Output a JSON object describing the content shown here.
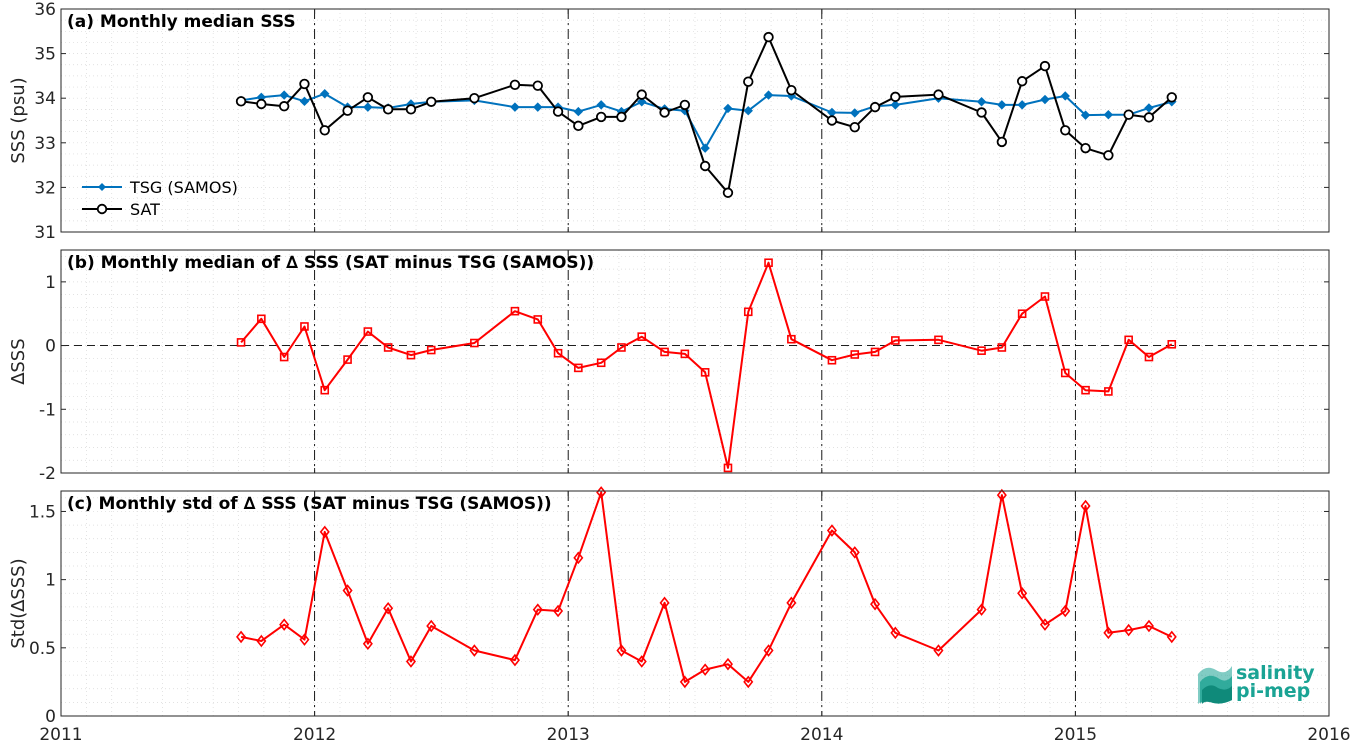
{
  "chart_data": [
    {
      "type": "line",
      "title": "(a) Monthly median SSS",
      "ylabel": "SSS (psu)",
      "xlim": [
        2011,
        2016
      ],
      "ylim": [
        31,
        36
      ],
      "x_ticks": [
        "2011",
        "2012",
        "2013",
        "2014",
        "2015",
        "2016"
      ],
      "y_ticks": [
        "31",
        "32",
        "33",
        "34",
        "35",
        "36"
      ],
      "grid": true,
      "legend": "bottom-left",
      "series": [
        {
          "name": "TSG (SAMOS)",
          "color": "#0072bd",
          "marker": "diamond-filled",
          "x": [
            2011.71,
            2011.79,
            2011.88,
            2011.96,
            2012.04,
            2012.13,
            2012.21,
            2012.29,
            2012.38,
            2012.46,
            2012.63,
            2012.79,
            2012.88,
            2012.96,
            2013.04,
            2013.13,
            2013.21,
            2013.29,
            2013.38,
            2013.46,
            2013.54,
            2013.63,
            2013.71,
            2013.79,
            2013.88,
            2014.04,
            2014.13,
            2014.21,
            2014.29,
            2014.46,
            2014.63,
            2014.71,
            2014.79,
            2014.88,
            2014.96,
            2015.04,
            2015.13,
            2015.21,
            2015.29,
            2015.38
          ],
          "values": [
            33.95,
            34.02,
            34.07,
            33.93,
            34.1,
            33.8,
            33.8,
            33.78,
            33.87,
            33.92,
            33.95,
            33.8,
            33.8,
            33.8,
            33.7,
            33.85,
            33.7,
            33.92,
            33.76,
            33.72,
            32.88,
            33.77,
            33.72,
            34.07,
            34.05,
            33.68,
            33.67,
            33.82,
            33.85,
            34.0,
            33.92,
            33.85,
            33.85,
            33.97,
            34.05,
            33.62,
            33.63,
            33.63,
            33.78,
            33.92
          ]
        },
        {
          "name": "SAT",
          "color": "#000000",
          "marker": "circle-open",
          "x": [
            2011.71,
            2011.79,
            2011.88,
            2011.96,
            2012.04,
            2012.13,
            2012.21,
            2012.29,
            2012.38,
            2012.46,
            2012.63,
            2012.79,
            2012.88,
            2012.96,
            2013.04,
            2013.13,
            2013.21,
            2013.29,
            2013.38,
            2013.46,
            2013.54,
            2013.63,
            2013.71,
            2013.79,
            2013.88,
            2014.04,
            2014.13,
            2014.21,
            2014.29,
            2014.46,
            2014.63,
            2014.71,
            2014.79,
            2014.88,
            2014.96,
            2015.04,
            2015.13,
            2015.21,
            2015.29,
            2015.38
          ],
          "values": [
            33.93,
            33.87,
            33.82,
            34.32,
            33.28,
            33.72,
            34.02,
            33.75,
            33.75,
            33.92,
            34.0,
            34.3,
            34.28,
            33.7,
            33.38,
            33.58,
            33.58,
            34.08,
            33.68,
            33.85,
            32.48,
            31.88,
            34.37,
            35.37,
            34.18,
            33.5,
            33.35,
            33.8,
            34.03,
            34.08,
            33.68,
            33.02,
            34.38,
            34.72,
            33.28,
            32.88,
            32.72,
            33.63,
            33.57,
            34.02
          ]
        }
      ]
    },
    {
      "type": "line",
      "title": "(b) Monthly median of ∆ SSS (SAT minus TSG (SAMOS))",
      "ylabel": "∆SSS",
      "xlim": [
        2011,
        2016
      ],
      "ylim": [
        -2,
        1.5
      ],
      "x_ticks": [
        "2011",
        "2012",
        "2013",
        "2014",
        "2015",
        "2016"
      ],
      "y_ticks": [
        "-2",
        "-1",
        "0",
        "1"
      ],
      "grid": true,
      "series": [
        {
          "color": "#ff0000",
          "marker": "square-open",
          "x": [
            2011.71,
            2011.79,
            2011.88,
            2011.96,
            2012.04,
            2012.13,
            2012.21,
            2012.29,
            2012.38,
            2012.46,
            2012.63,
            2012.79,
            2012.88,
            2012.96,
            2013.04,
            2013.13,
            2013.21,
            2013.29,
            2013.38,
            2013.46,
            2013.54,
            2013.63,
            2013.71,
            2013.79,
            2013.88,
            2014.04,
            2014.13,
            2014.21,
            2014.29,
            2014.46,
            2014.63,
            2014.71,
            2014.79,
            2014.88,
            2014.96,
            2015.04,
            2015.13,
            2015.21,
            2015.29,
            2015.38
          ],
          "values": [
            0.05,
            0.42,
            -0.18,
            0.3,
            -0.7,
            -0.22,
            0.22,
            -0.03,
            -0.15,
            -0.07,
            0.04,
            0.54,
            0.41,
            -0.12,
            -0.35,
            -0.27,
            -0.03,
            0.14,
            -0.1,
            -0.13,
            -0.42,
            -1.92,
            0.53,
            1.3,
            0.1,
            -0.23,
            -0.14,
            -0.1,
            0.08,
            0.09,
            -0.08,
            -0.03,
            0.5,
            0.77,
            -0.43,
            -0.7,
            -0.72,
            0.09,
            -0.18,
            0.02
          ]
        }
      ]
    },
    {
      "type": "line",
      "title": "(c) Monthly std of ∆ SSS (SAT minus TSG (SAMOS))",
      "ylabel": "Std(∆SSS)",
      "xlim": [
        2011,
        2016
      ],
      "ylim": [
        0,
        1.65
      ],
      "x_ticks": [
        "2011",
        "2012",
        "2013",
        "2014",
        "2015",
        "2016"
      ],
      "y_ticks": [
        "0",
        "0.5",
        "1",
        "1.5"
      ],
      "grid": true,
      "series": [
        {
          "color": "#ff0000",
          "marker": "diamond-open",
          "x": [
            2011.71,
            2011.79,
            2011.88,
            2011.96,
            2012.04,
            2012.13,
            2012.21,
            2012.29,
            2012.38,
            2012.46,
            2012.63,
            2012.79,
            2012.88,
            2012.96,
            2013.04,
            2013.13,
            2013.21,
            2013.29,
            2013.38,
            2013.46,
            2013.54,
            2013.63,
            2013.71,
            2013.79,
            2013.88,
            2014.04,
            2014.13,
            2014.21,
            2014.29,
            2014.46,
            2014.63,
            2014.71,
            2014.79,
            2014.88,
            2014.96,
            2015.04,
            2015.13,
            2015.21,
            2015.29,
            2015.38
          ],
          "values": [
            0.58,
            0.55,
            0.67,
            0.56,
            1.35,
            0.92,
            0.53,
            0.79,
            0.4,
            0.66,
            0.48,
            0.41,
            0.78,
            0.77,
            1.16,
            1.64,
            0.48,
            0.4,
            0.83,
            0.25,
            0.34,
            0.38,
            0.25,
            0.48,
            0.83,
            1.36,
            1.2,
            0.82,
            0.61,
            0.48,
            0.78,
            1.62,
            0.9,
            0.67,
            0.77,
            1.54,
            0.61,
            0.63,
            0.66,
            0.58
          ]
        }
      ]
    }
  ],
  "logo": {
    "line1": "salinity",
    "line2": "pi-mep",
    "color": "#1aa394"
  }
}
